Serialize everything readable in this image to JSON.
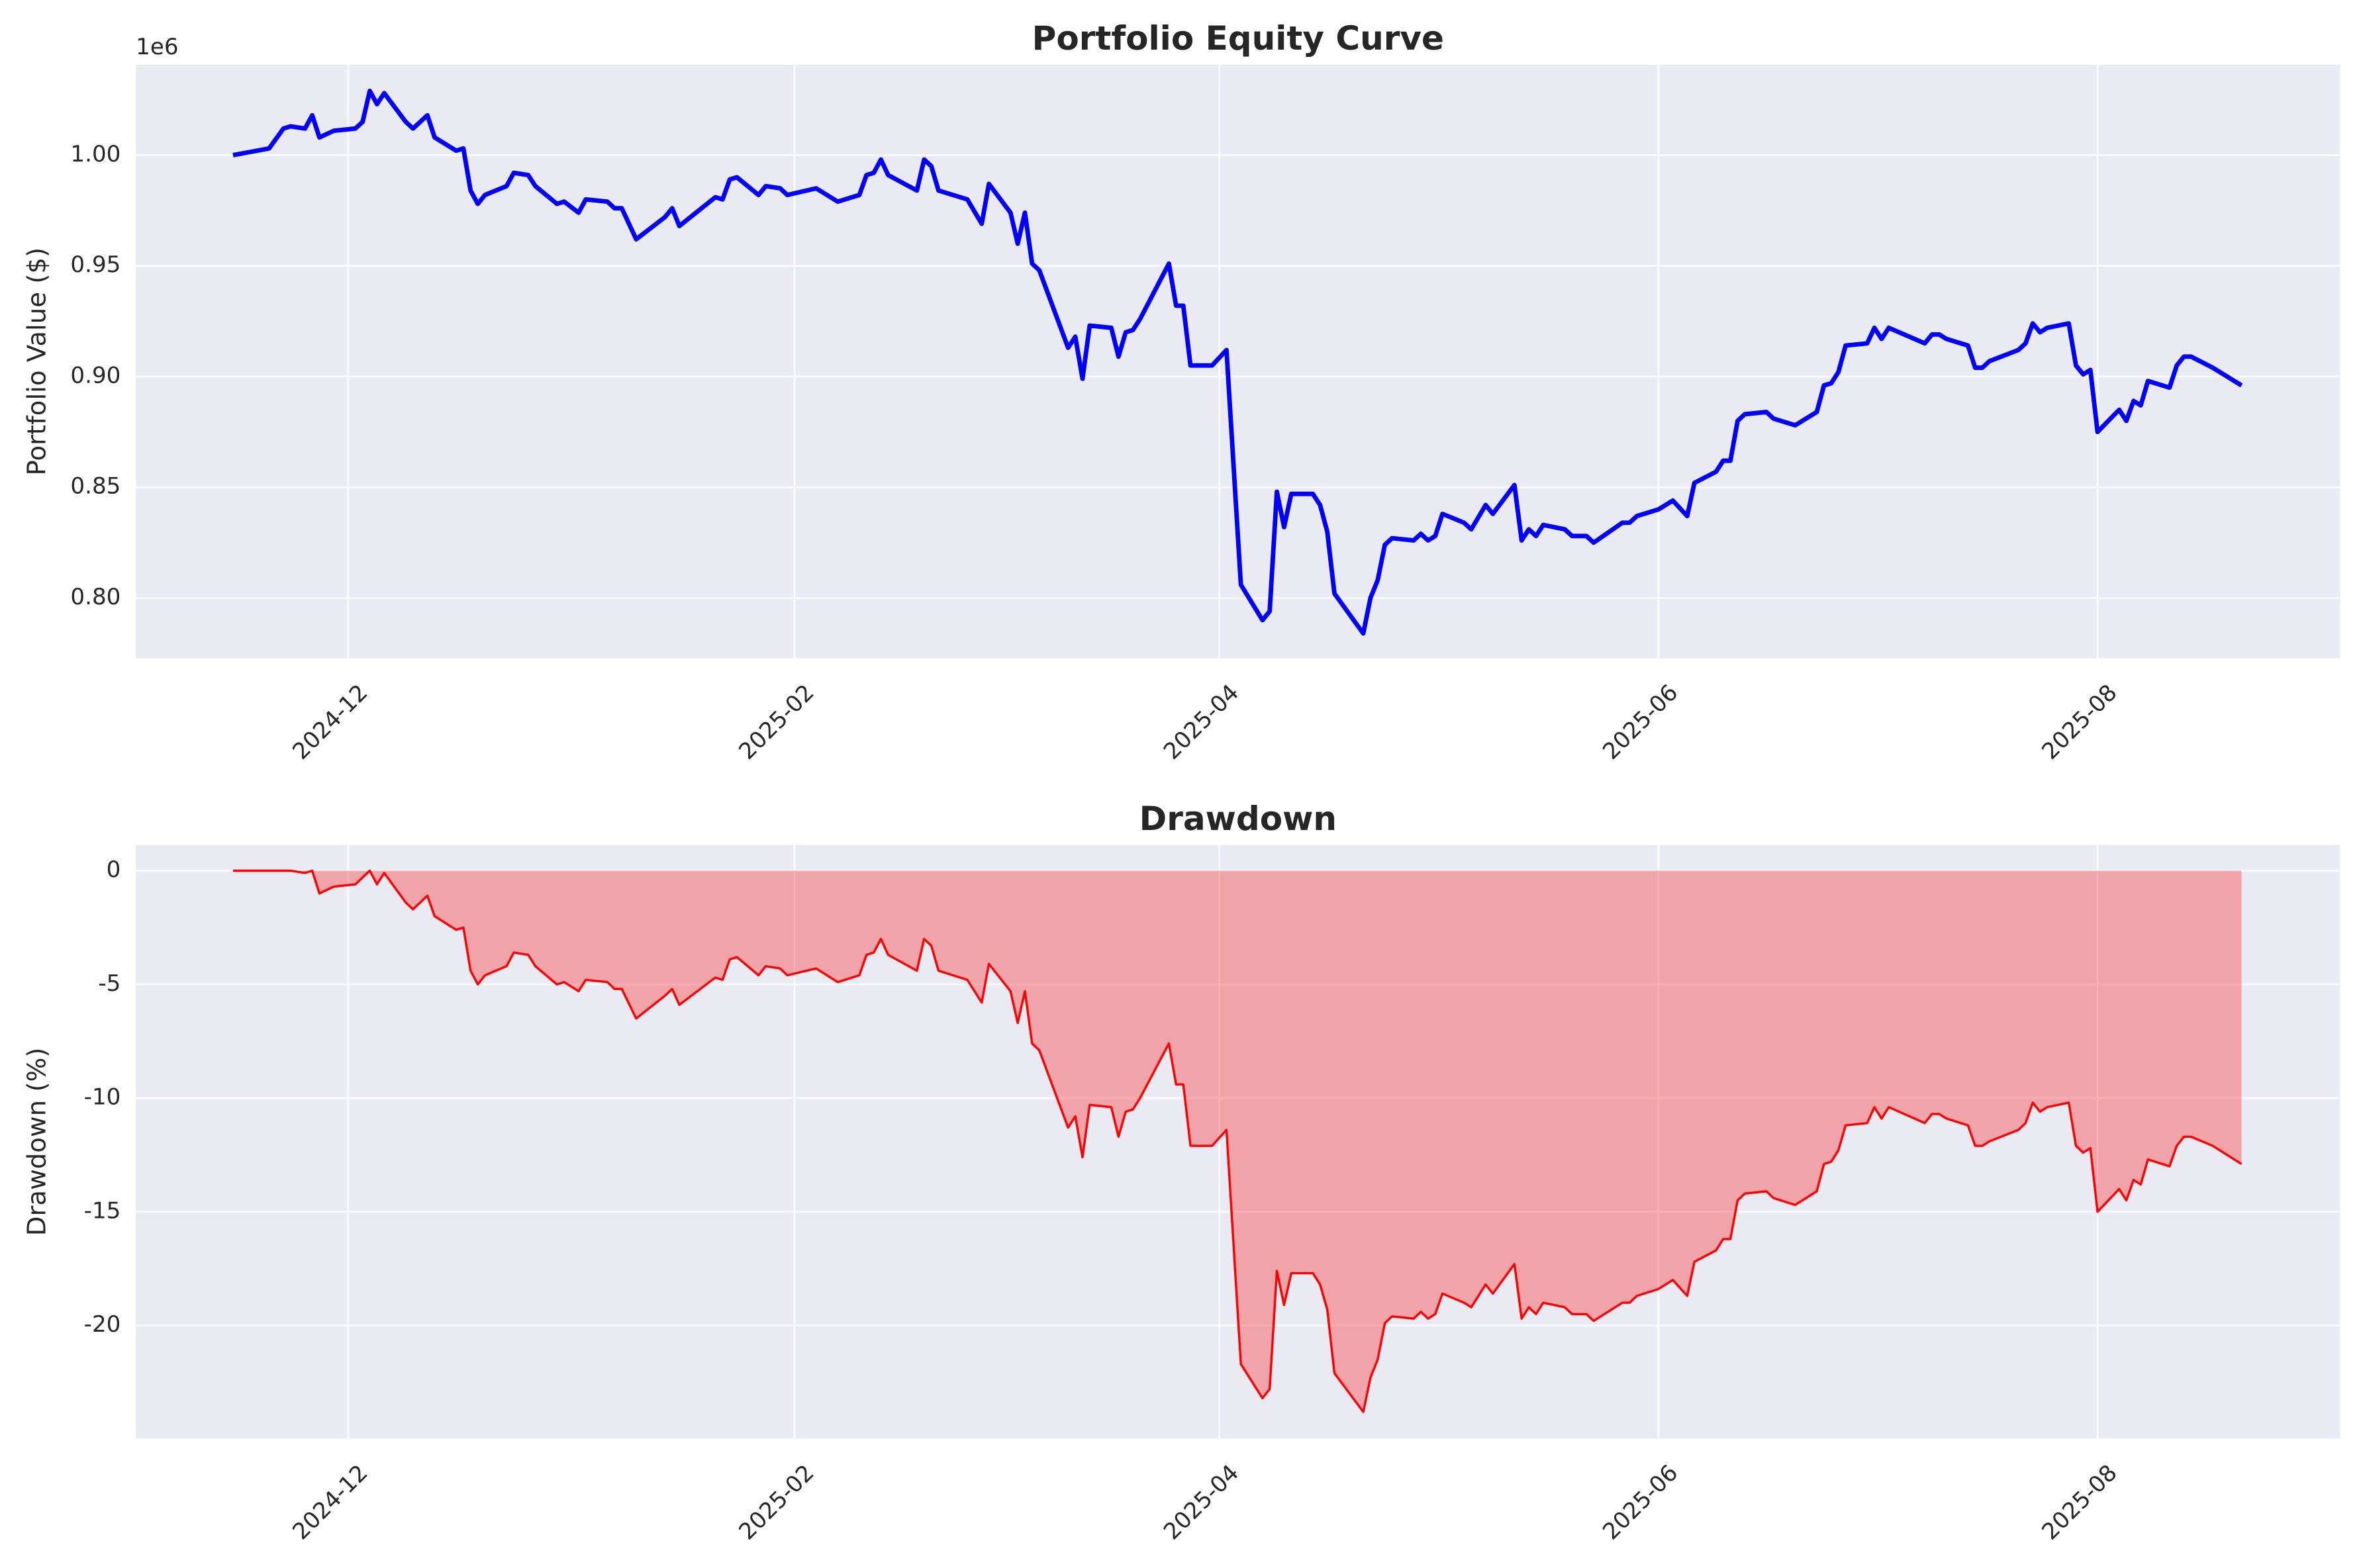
{
  "chart_data": [
    {
      "type": "line",
      "title": "Portfolio Equity Curve",
      "y_label": "Portfolio Value ($)",
      "offset_label": "1e6",
      "x": [
        20042,
        20047,
        20049,
        20050,
        20052,
        20053,
        20054,
        20056,
        20059,
        20060,
        20061,
        20062,
        20063,
        20066,
        20067,
        20069,
        20070,
        20073,
        20074,
        20075,
        20076,
        20077,
        20080,
        20081,
        20083,
        20084,
        20087,
        20088,
        20090,
        20091,
        20094,
        20095,
        20096,
        20098,
        20102,
        20103,
        20104,
        20109,
        20110,
        20111,
        20112,
        20115,
        20116,
        20118,
        20119,
        20123,
        20126,
        20129,
        20130,
        20131,
        20132,
        20133,
        20137,
        20138,
        20139,
        20140,
        20144,
        20146,
        20147,
        20150,
        20151,
        20152,
        20153,
        20154,
        20158,
        20159,
        20160,
        20161,
        20164,
        20165,
        20166,
        20167,
        20168,
        20172,
        20173,
        20174,
        20175,
        20178,
        20180,
        20182,
        20185,
        20186,
        20187,
        20188,
        20189,
        20192,
        20193,
        20194,
        20195,
        20199,
        20200,
        20201,
        20202,
        20203,
        20206,
        20207,
        20208,
        20209,
        20210,
        20213,
        20214,
        20216,
        20217,
        20220,
        20221,
        20222,
        20223,
        20224,
        20227,
        20228,
        20230,
        20231,
        20235,
        20236,
        20237,
        20240,
        20242,
        20244,
        20245,
        20248,
        20249,
        20250,
        20251,
        20252,
        20255,
        20256,
        20259,
        20262,
        20263,
        20264,
        20265,
        20266,
        20269,
        20270,
        20271,
        20272,
        20277,
        20278,
        20279,
        20280,
        20283,
        20284,
        20285,
        20286,
        20290,
        20291,
        20292,
        20293,
        20294,
        20297,
        20298,
        20299,
        20300,
        20301,
        20304,
        20305,
        20306,
        20307,
        20308,
        20311,
        20312,
        20313,
        20314,
        20317,
        20321
      ],
      "values": [
        1.0,
        1.003,
        1.012,
        1.013,
        1.012,
        1.018,
        1.008,
        1.011,
        1.012,
        1.015,
        1.029,
        1.023,
        1.028,
        1.015,
        1.012,
        1.018,
        1.008,
        1.002,
        1.003,
        0.984,
        0.978,
        0.982,
        0.986,
        0.992,
        0.991,
        0.986,
        0.978,
        0.979,
        0.974,
        0.98,
        0.979,
        0.976,
        0.976,
        0.962,
        0.972,
        0.976,
        0.968,
        0.981,
        0.98,
        0.989,
        0.99,
        0.982,
        0.986,
        0.985,
        0.982,
        0.985,
        0.979,
        0.982,
        0.991,
        0.992,
        0.998,
        0.991,
        0.984,
        0.998,
        0.995,
        0.984,
        0.98,
        0.969,
        0.987,
        0.974,
        0.96,
        0.974,
        0.951,
        0.948,
        0.913,
        0.918,
        0.899,
        0.923,
        0.922,
        0.909,
        0.92,
        0.921,
        0.926,
        0.951,
        0.932,
        0.932,
        0.905,
        0.905,
        0.912,
        0.806,
        0.79,
        0.794,
        0.848,
        0.832,
        0.847,
        0.847,
        0.842,
        0.83,
        0.802,
        0.784,
        0.8,
        0.808,
        0.824,
        0.827,
        0.826,
        0.829,
        0.826,
        0.828,
        0.838,
        0.834,
        0.831,
        0.842,
        0.838,
        0.851,
        0.826,
        0.831,
        0.828,
        0.833,
        0.831,
        0.828,
        0.828,
        0.825,
        0.834,
        0.834,
        0.837,
        0.84,
        0.844,
        0.837,
        0.852,
        0.857,
        0.862,
        0.862,
        0.88,
        0.883,
        0.884,
        0.881,
        0.878,
        0.884,
        0.896,
        0.897,
        0.902,
        0.914,
        0.915,
        0.922,
        0.917,
        0.922,
        0.915,
        0.919,
        0.919,
        0.917,
        0.914,
        0.904,
        0.904,
        0.907,
        0.912,
        0.915,
        0.924,
        0.92,
        0.922,
        0.924,
        0.905,
        0.901,
        0.903,
        0.875,
        0.885,
        0.88,
        0.889,
        0.887,
        0.898,
        0.895,
        0.905,
        0.909,
        0.909,
        0.904,
        0.896
      ],
      "color": "blue",
      "grid": true,
      "xlim": [
        20028.5,
        20334.7
      ],
      "xticks": [
        {
          "value": 20058,
          "label": "2024-12"
        },
        {
          "value": 20120,
          "label": "2025-02"
        },
        {
          "value": 20179,
          "label": "2025-04"
        },
        {
          "value": 20240,
          "label": "2025-06"
        },
        {
          "value": 20301,
          "label": "2025-08"
        }
      ],
      "ylim": [
        0.7728,
        1.0408
      ],
      "yticks": [
        {
          "value": 0.8,
          "label": "0.80"
        },
        {
          "value": 0.85,
          "label": "0.85"
        },
        {
          "value": 0.9,
          "label": "0.90"
        },
        {
          "value": 0.95,
          "label": "0.95"
        },
        {
          "value": 1.0,
          "label": "1.00"
        }
      ]
    },
    {
      "type": "area",
      "title": "Drawdown",
      "y_label": "Drawdown (%)",
      "x": [
        20042,
        20047,
        20049,
        20050,
        20052,
        20053,
        20054,
        20056,
        20059,
        20060,
        20061,
        20062,
        20063,
        20066,
        20067,
        20069,
        20070,
        20073,
        20074,
        20075,
        20076,
        20077,
        20080,
        20081,
        20083,
        20084,
        20087,
        20088,
        20090,
        20091,
        20094,
        20095,
        20096,
        20098,
        20102,
        20103,
        20104,
        20109,
        20110,
        20111,
        20112,
        20115,
        20116,
        20118,
        20119,
        20123,
        20126,
        20129,
        20130,
        20131,
        20132,
        20133,
        20137,
        20138,
        20139,
        20140,
        20144,
        20146,
        20147,
        20150,
        20151,
        20152,
        20153,
        20154,
        20158,
        20159,
        20160,
        20161,
        20164,
        20165,
        20166,
        20167,
        20168,
        20172,
        20173,
        20174,
        20175,
        20178,
        20180,
        20182,
        20185,
        20186,
        20187,
        20188,
        20189,
        20192,
        20193,
        20194,
        20195,
        20199,
        20200,
        20201,
        20202,
        20203,
        20206,
        20207,
        20208,
        20209,
        20210,
        20213,
        20214,
        20216,
        20217,
        20220,
        20221,
        20222,
        20223,
        20224,
        20227,
        20228,
        20230,
        20231,
        20235,
        20236,
        20237,
        20240,
        20242,
        20244,
        20245,
        20248,
        20249,
        20250,
        20251,
        20252,
        20255,
        20256,
        20259,
        20262,
        20263,
        20264,
        20265,
        20266,
        20269,
        20270,
        20271,
        20272,
        20277,
        20278,
        20279,
        20280,
        20283,
        20284,
        20285,
        20286,
        20290,
        20291,
        20292,
        20293,
        20294,
        20297,
        20298,
        20299,
        20300,
        20301,
        20304,
        20305,
        20306,
        20307,
        20308,
        20311,
        20312,
        20313,
        20314,
        20317,
        20321
      ],
      "values": [
        0,
        0,
        0,
        0,
        -0.1,
        0,
        -1.0,
        -0.7,
        -0.6,
        -0.3,
        0,
        -0.6,
        -0.1,
        -1.4,
        -1.7,
        -1.1,
        -2.0,
        -2.6,
        -2.5,
        -4.4,
        -5.0,
        -4.6,
        -4.2,
        -3.6,
        -3.7,
        -4.2,
        -5.0,
        -4.9,
        -5.3,
        -4.8,
        -4.9,
        -5.2,
        -5.2,
        -6.5,
        -5.5,
        -5.2,
        -5.9,
        -4.7,
        -4.8,
        -3.9,
        -3.8,
        -4.6,
        -4.2,
        -4.3,
        -4.6,
        -4.3,
        -4.9,
        -4.6,
        -3.7,
        -3.6,
        -3.0,
        -3.7,
        -4.4,
        -3.0,
        -3.3,
        -4.4,
        -4.8,
        -5.8,
        -4.1,
        -5.3,
        -6.7,
        -5.3,
        -7.6,
        -7.9,
        -11.3,
        -10.8,
        -12.6,
        -10.3,
        -10.4,
        -11.7,
        -10.6,
        -10.5,
        -10.0,
        -7.6,
        -9.4,
        -9.4,
        -12.1,
        -12.1,
        -11.4,
        -21.7,
        -23.2,
        -22.8,
        -17.6,
        -19.1,
        -17.7,
        -17.7,
        -18.2,
        -19.3,
        -22.1,
        -23.8,
        -22.3,
        -21.5,
        -19.9,
        -19.6,
        -19.7,
        -19.4,
        -19.7,
        -19.5,
        -18.6,
        -19.0,
        -19.2,
        -18.2,
        -18.6,
        -17.3,
        -19.7,
        -19.2,
        -19.5,
        -19.0,
        -19.2,
        -19.5,
        -19.5,
        -19.8,
        -19.0,
        -19.0,
        -18.7,
        -18.4,
        -18.0,
        -18.7,
        -17.2,
        -16.7,
        -16.2,
        -16.2,
        -14.5,
        -14.2,
        -14.1,
        -14.4,
        -14.7,
        -14.1,
        -12.9,
        -12.8,
        -12.3,
        -11.2,
        -11.1,
        -10.4,
        -10.9,
        -10.4,
        -11.1,
        -10.7,
        -10.7,
        -10.9,
        -11.2,
        -12.1,
        -12.1,
        -11.9,
        -11.4,
        -11.1,
        -10.2,
        -10.6,
        -10.4,
        -10.2,
        -12.1,
        -12.4,
        -12.2,
        -15.0,
        -14.0,
        -14.5,
        -13.6,
        -13.8,
        -12.7,
        -13.0,
        -12.1,
        -11.7,
        -11.7,
        -12.1,
        -12.9
      ],
      "color": "red",
      "fill_opacity": 0.3,
      "grid": true,
      "xlim": [
        20028.5,
        20334.7
      ],
      "xticks": [
        {
          "value": 20058,
          "label": "2024-12"
        },
        {
          "value": 20120,
          "label": "2025-02"
        },
        {
          "value": 20179,
          "label": "2025-04"
        },
        {
          "value": 20240,
          "label": "2025-06"
        },
        {
          "value": 20301,
          "label": "2025-08"
        }
      ],
      "ylim": [
        -24.97,
        1.13
      ],
      "yticks": [
        -20,
        -15,
        -10,
        -5,
        0
      ]
    }
  ]
}
